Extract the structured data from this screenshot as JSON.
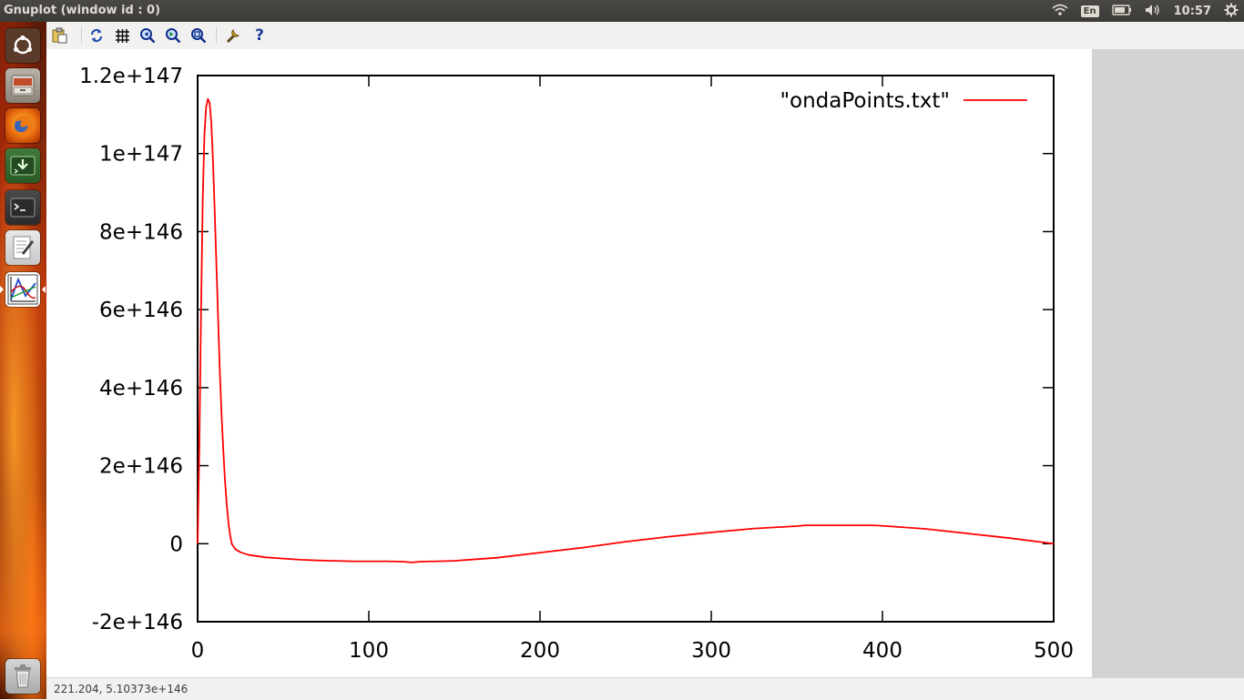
{
  "window": {
    "title": "Gnuplot (window id : 0)"
  },
  "panel": {
    "language": "En",
    "clock": "10:57",
    "icons": [
      "wifi-icon",
      "keyboard-layout-icon",
      "battery-icon",
      "volume-icon",
      "gear-icon"
    ]
  },
  "launcher": {
    "items": [
      {
        "name": "dash-home",
        "icon": "ubuntu-logo-icon"
      },
      {
        "name": "files",
        "icon": "file-cabinet-icon"
      },
      {
        "name": "firefox",
        "icon": "firefox-icon"
      },
      {
        "name": "software-install",
        "icon": "install-arrow-icon"
      },
      {
        "name": "terminal",
        "icon": "terminal-icon"
      },
      {
        "name": "text-editor",
        "icon": "text-editor-icon"
      },
      {
        "name": "gnuplot",
        "icon": "gnuplot-chart-icon"
      },
      {
        "name": "trash",
        "icon": "trash-icon"
      }
    ]
  },
  "toolbar": {
    "buttons": [
      {
        "name": "copy-to-clipboard",
        "icon": "clipboard-icon"
      },
      {
        "name": "replot",
        "icon": "refresh-icon"
      },
      {
        "name": "toggle-grid",
        "icon": "grid-icon"
      },
      {
        "name": "previous-zoom",
        "icon": "zoom-previous-icon"
      },
      {
        "name": "next-zoom",
        "icon": "zoom-next-icon"
      },
      {
        "name": "autoscale",
        "icon": "zoom-autoscale-icon"
      },
      {
        "name": "configure",
        "icon": "wrench-icon"
      },
      {
        "name": "help",
        "icon": "help-icon"
      }
    ]
  },
  "status": {
    "coordinates": "221.204,  5.10373e+146"
  },
  "colors": {
    "series": "#ff0000",
    "axis": "#000000",
    "side_panel": "#d3d3d3"
  },
  "chart_data": {
    "type": "line",
    "title": "",
    "xlabel": "",
    "ylabel": "",
    "xlim": [
      0,
      500
    ],
    "ylim": [
      -2e+146,
      1.2e+147
    ],
    "grid": false,
    "legend": "top-right",
    "x_ticks": [
      "0",
      "100",
      "200",
      "300",
      "400",
      "500"
    ],
    "y_ticks": [
      "-2e+146",
      "0",
      "2e+146",
      "4e+146",
      "6e+146",
      "8e+146",
      "1e+147",
      "1.2e+147"
    ],
    "series": [
      {
        "name": "\"ondaPoints.txt\"",
        "color": "#ff0000",
        "x": [
          0,
          1,
          2,
          3,
          4,
          5,
          6,
          7,
          8,
          9,
          10,
          11,
          12,
          13,
          14,
          15,
          16,
          17,
          18,
          19,
          20,
          22,
          25,
          30,
          40,
          50,
          60,
          70,
          80,
          90,
          100,
          110,
          120,
          125,
          130,
          140,
          150,
          175,
          200,
          225,
          250,
          275,
          300,
          325,
          350,
          355,
          375,
          395,
          400,
          425,
          450,
          475,
          500
        ],
        "y": [
          0,
          2.5e+146,
          6e+146,
          8.8e+146,
          1.05e+147,
          1.12e+147,
          1.14e+147,
          1.13e+147,
          1.08e+147,
          9.8e+146,
          8.5e+146,
          7.1e+146,
          5.7e+146,
          4.4e+146,
          3.3e+146,
          2.4e+146,
          1.6e+146,
          1e+146,
          5.5e+145,
          2.2e+145,
          -1e+144,
          -1.4e+145,
          -2.2e+145,
          -2.9e+145,
          -3.5e+145,
          -3.8e+145,
          -4.1e+145,
          -4.3e+145,
          -4.4e+145,
          -4.5e+145,
          -4.5e+145,
          -4.5e+145,
          -4.6e+145,
          -4.8e+145,
          -4.6e+145,
          -4.5e+145,
          -4.4e+145,
          -3.6e+145,
          -2.3e+145,
          -1e+145,
          5e+144,
          1.8e+145,
          2.9e+145,
          3.9e+145,
          4.5e+145,
          4.7e+145,
          4.7e+145,
          4.7e+145,
          4.6e+145,
          3.8e+145,
          2.6e+145,
          1.4e+145,
          0
        ]
      }
    ]
  }
}
